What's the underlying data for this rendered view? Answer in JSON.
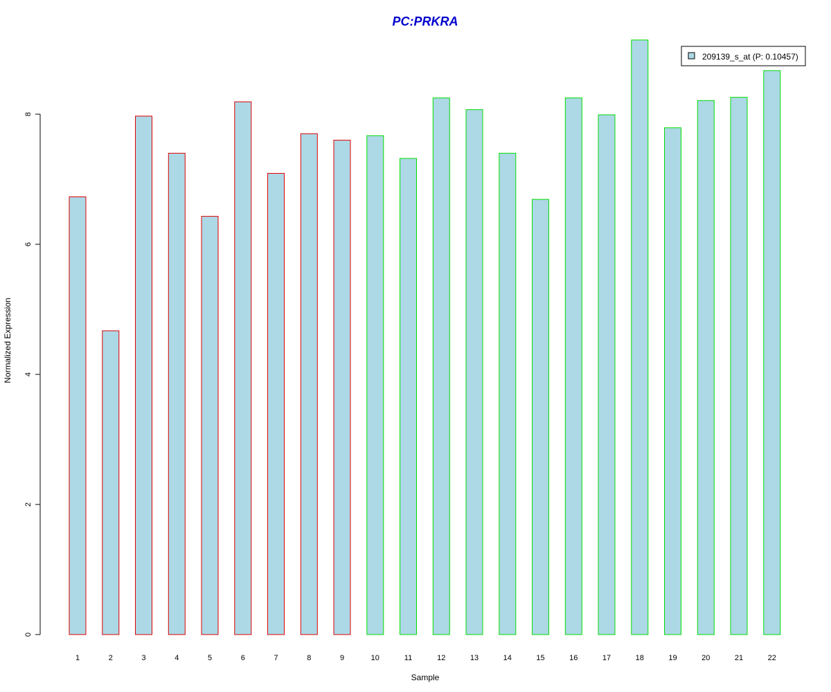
{
  "chart_data": {
    "type": "bar",
    "title": "PC:PRKRA",
    "xlabel": "Sample",
    "ylabel": "Normalized Expression",
    "categories": [
      "1",
      "2",
      "3",
      "4",
      "5",
      "6",
      "7",
      "8",
      "9",
      "10",
      "11",
      "12",
      "13",
      "14",
      "15",
      "16",
      "17",
      "18",
      "19",
      "20",
      "21",
      "22"
    ],
    "values": [
      6.73,
      4.67,
      7.97,
      7.4,
      6.43,
      8.19,
      7.09,
      7.7,
      7.6,
      7.67,
      7.32,
      8.25,
      8.07,
      7.4,
      6.69,
      8.25,
      7.99,
      9.14,
      7.79,
      8.21,
      8.26,
      8.67
    ],
    "groups": [
      "red",
      "red",
      "red",
      "red",
      "red",
      "red",
      "red",
      "red",
      "red",
      "green",
      "green",
      "green",
      "green",
      "green",
      "green",
      "green",
      "green",
      "green",
      "green",
      "green",
      "green",
      "green"
    ],
    "y_ticks": [
      "0",
      "2",
      "4",
      "6",
      "8"
    ],
    "ylim": [
      0,
      9.2
    ],
    "grid": false,
    "legend": {
      "placement": "top-right",
      "entries": [
        {
          "label": "209139_s_at (P: 0.10457)",
          "fill": "#add8e6"
        }
      ]
    }
  },
  "colors": {
    "title": "#0000cd",
    "bar_fill": "#add8e6",
    "red": "#dd0000",
    "green": "#00dd00",
    "axis": "#000000"
  }
}
